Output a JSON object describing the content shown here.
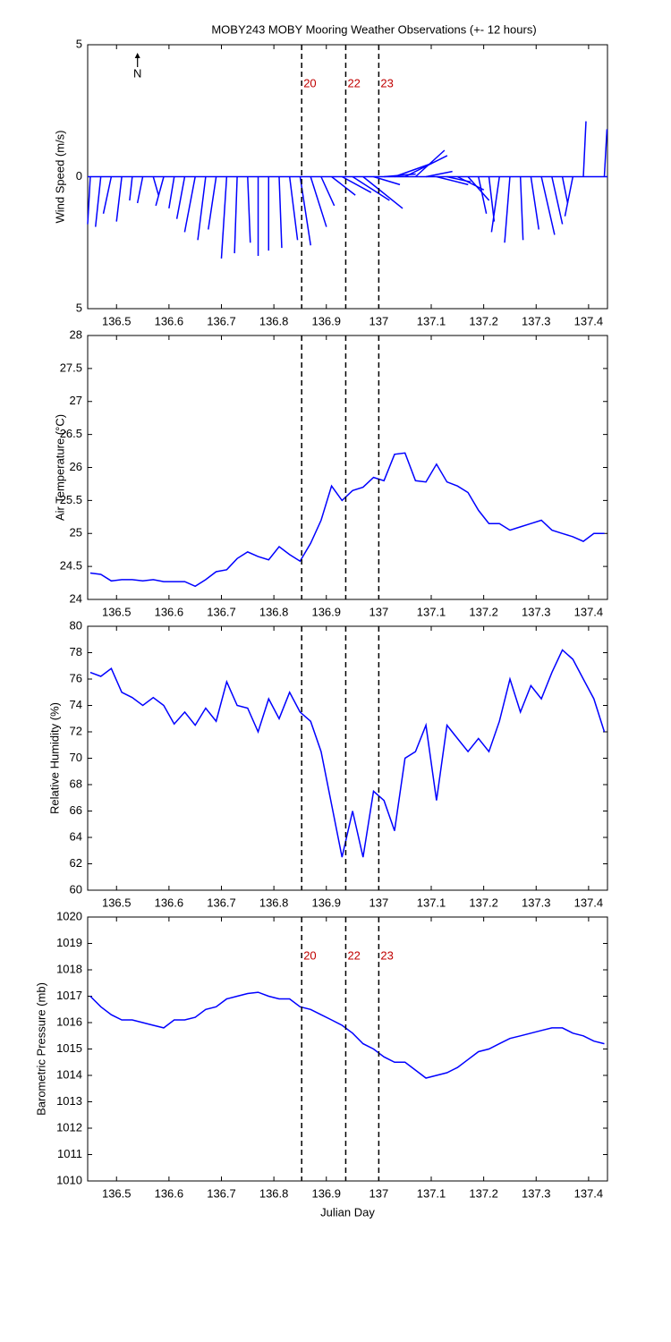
{
  "chart_data": [
    {
      "type": "quiver",
      "title": "MOBY243 MOBY Mooring Weather Observations (+- 12 hours)",
      "y_label": "Wind Speed (m/s)",
      "annotation": "N",
      "annotation_x": 136.54,
      "color": "#0000ff",
      "x": [
        136.45,
        136.47,
        136.49,
        136.51,
        136.53,
        136.55,
        136.57,
        136.59,
        136.61,
        136.63,
        136.65,
        136.67,
        136.69,
        136.71,
        136.73,
        136.75,
        136.77,
        136.79,
        136.81,
        136.83,
        136.85,
        136.87,
        136.89,
        136.91,
        136.93,
        136.95,
        136.97,
        136.99,
        137.01,
        137.03,
        137.05,
        137.07,
        137.09,
        137.11,
        137.13,
        137.15,
        137.17,
        137.19,
        137.21,
        137.23,
        137.25,
        137.27,
        137.29,
        137.31,
        137.33,
        137.35,
        137.37,
        137.39,
        137.41,
        137.43
      ],
      "u": [
        -0.1,
        -0.2,
        -0.3,
        -0.2,
        -0.1,
        -0.2,
        0.2,
        -0.3,
        -0.2,
        -0.3,
        -0.4,
        -0.3,
        -0.3,
        -0.2,
        -0.1,
        0.1,
        0.0,
        0.0,
        0.1,
        0.3,
        0.4,
        0.6,
        0.5,
        0.9,
        1.1,
        1.4,
        1.5,
        1.0,
        1.2,
        1.4,
        1.6,
        1.1,
        1.0,
        1.2,
        0.9,
        1.0,
        0.8,
        0.3,
        0.2,
        -0.3,
        -0.2,
        0.1,
        0.3,
        0.5,
        0.4,
        0.2,
        -0.3,
        0.1,
        0.0,
        0.1
      ],
      "v": [
        -1.8,
        -1.9,
        -1.4,
        -1.7,
        -0.9,
        -1.0,
        -0.7,
        -1.1,
        -1.2,
        -1.6,
        -2.1,
        -2.4,
        -2.0,
        -3.1,
        -2.9,
        -2.5,
        -3.0,
        -2.8,
        -2.7,
        -2.4,
        -2.6,
        -1.9,
        -1.1,
        -0.7,
        -0.6,
        -0.9,
        -1.2,
        -0.3,
        0.1,
        0.5,
        0.8,
        1.0,
        0.2,
        -0.3,
        -0.2,
        -0.5,
        -0.9,
        -1.4,
        -1.7,
        -2.1,
        -2.5,
        -2.4,
        -2.0,
        -2.2,
        -1.8,
        -1.0,
        -1.5,
        2.1,
        0.0,
        1.8
      ],
      "xlim": [
        136.445,
        137.436
      ],
      "xticks": [
        136.5,
        136.6,
        136.7,
        136.8,
        136.9,
        137,
        137.1,
        137.2,
        137.3,
        137.4
      ],
      "ylim": [
        -5,
        5
      ],
      "yticks": [
        {
          "value": -5,
          "label": "5"
        },
        0,
        5
      ],
      "vlines": [
        136.853,
        136.937,
        137.0
      ],
      "vline_labels": [
        "20",
        "22",
        "23"
      ]
    },
    {
      "type": "line",
      "y_label": "Air Temperature (°C)",
      "color": "#0000ff",
      "x": [
        136.45,
        136.47,
        136.49,
        136.51,
        136.53,
        136.55,
        136.57,
        136.59,
        136.61,
        136.63,
        136.65,
        136.67,
        136.69,
        136.71,
        136.73,
        136.75,
        136.77,
        136.79,
        136.81,
        136.83,
        136.85,
        136.87,
        136.89,
        136.91,
        136.93,
        136.95,
        136.97,
        136.99,
        137.01,
        137.03,
        137.05,
        137.07,
        137.09,
        137.11,
        137.13,
        137.15,
        137.17,
        137.19,
        137.21,
        137.23,
        137.25,
        137.27,
        137.29,
        137.31,
        137.33,
        137.35,
        137.37,
        137.39,
        137.41,
        137.43
      ],
      "values": [
        24.4,
        24.38,
        24.28,
        24.3,
        24.3,
        24.28,
        24.3,
        24.27,
        24.27,
        24.27,
        24.2,
        24.3,
        24.42,
        24.45,
        24.62,
        24.72,
        24.65,
        24.6,
        24.8,
        24.68,
        24.58,
        24.85,
        25.2,
        25.72,
        25.5,
        25.65,
        25.7,
        25.85,
        25.8,
        26.2,
        26.22,
        25.8,
        25.78,
        26.05,
        25.78,
        25.72,
        25.62,
        25.35,
        25.15,
        25.15,
        25.05,
        25.1,
        25.15,
        25.2,
        25.05,
        25.0,
        24.95,
        24.88,
        25.0,
        25.0
      ],
      "xlim": [
        136.445,
        137.436
      ],
      "xticks": [
        136.5,
        136.6,
        136.7,
        136.8,
        136.9,
        137,
        137.1,
        137.2,
        137.3,
        137.4
      ],
      "ylim": [
        24,
        28
      ],
      "yticks": [
        24,
        24.5,
        25,
        25.5,
        26,
        26.5,
        27,
        27.5,
        28
      ],
      "vlines": [
        136.853,
        136.937,
        137.0
      ]
    },
    {
      "type": "line",
      "y_label": "Relative Humidity (%)",
      "color": "#0000ff",
      "x": [
        136.45,
        136.47,
        136.49,
        136.51,
        136.53,
        136.55,
        136.57,
        136.59,
        136.61,
        136.63,
        136.65,
        136.67,
        136.69,
        136.71,
        136.73,
        136.75,
        136.77,
        136.79,
        136.81,
        136.83,
        136.85,
        136.87,
        136.89,
        136.91,
        136.93,
        136.95,
        136.97,
        136.99,
        137.01,
        137.03,
        137.05,
        137.07,
        137.09,
        137.11,
        137.13,
        137.15,
        137.17,
        137.19,
        137.21,
        137.23,
        137.25,
        137.27,
        137.29,
        137.31,
        137.33,
        137.35,
        137.37,
        137.39,
        137.41,
        137.43
      ],
      "values": [
        76.5,
        76.2,
        76.8,
        75.0,
        74.6,
        74.0,
        74.6,
        74.0,
        72.6,
        73.5,
        72.5,
        73.8,
        72.8,
        75.8,
        74.0,
        73.8,
        72.0,
        74.5,
        73.0,
        75.0,
        73.5,
        72.8,
        70.5,
        66.5,
        62.5,
        66.0,
        62.5,
        67.5,
        66.8,
        64.5,
        70.0,
        70.5,
        72.5,
        66.8,
        72.5,
        71.5,
        70.5,
        71.5,
        70.5,
        72.8,
        76.0,
        73.5,
        75.5,
        74.5,
        76.5,
        78.2,
        77.5,
        76.0,
        74.5,
        72.0
      ],
      "xlim": [
        136.445,
        137.436
      ],
      "xticks": [
        136.5,
        136.6,
        136.7,
        136.8,
        136.9,
        137,
        137.1,
        137.2,
        137.3,
        137.4
      ],
      "ylim": [
        60,
        80
      ],
      "yticks": [
        60,
        62,
        64,
        66,
        68,
        70,
        72,
        74,
        76,
        78,
        80
      ],
      "vlines": [
        136.853,
        136.937,
        137.0
      ]
    },
    {
      "type": "line",
      "y_label": "Barometric Pressure (mb)",
      "x_label": "Julian Day",
      "color": "#0000ff",
      "x": [
        136.45,
        136.47,
        136.49,
        136.51,
        136.53,
        136.55,
        136.57,
        136.59,
        136.61,
        136.63,
        136.65,
        136.67,
        136.69,
        136.71,
        136.73,
        136.75,
        136.77,
        136.79,
        136.81,
        136.83,
        136.85,
        136.87,
        136.89,
        136.91,
        136.93,
        136.95,
        136.97,
        136.99,
        137.01,
        137.03,
        137.05,
        137.07,
        137.09,
        137.11,
        137.13,
        137.15,
        137.17,
        137.19,
        137.21,
        137.23,
        137.25,
        137.27,
        137.29,
        137.31,
        137.33,
        137.35,
        137.37,
        137.39,
        137.41,
        137.43
      ],
      "values": [
        1017.0,
        1016.6,
        1016.3,
        1016.1,
        1016.1,
        1016.0,
        1015.9,
        1015.8,
        1016.1,
        1016.1,
        1016.2,
        1016.5,
        1016.6,
        1016.9,
        1017.0,
        1017.1,
        1017.15,
        1017.0,
        1016.9,
        1016.9,
        1016.6,
        1016.5,
        1016.3,
        1016.1,
        1015.9,
        1015.6,
        1015.2,
        1015.0,
        1014.7,
        1014.5,
        1014.5,
        1014.2,
        1013.9,
        1014.0,
        1014.1,
        1014.3,
        1014.6,
        1014.9,
        1015.0,
        1015.2,
        1015.4,
        1015.5,
        1015.6,
        1015.7,
        1015.8,
        1015.8,
        1015.6,
        1015.5,
        1015.3,
        1015.2
      ],
      "xlim": [
        136.445,
        137.436
      ],
      "xticks": [
        136.5,
        136.6,
        136.7,
        136.8,
        136.9,
        137,
        137.1,
        137.2,
        137.3,
        137.4
      ],
      "ylim": [
        1010,
        1020
      ],
      "yticks": [
        1010,
        1011,
        1012,
        1013,
        1014,
        1015,
        1016,
        1017,
        1018,
        1019,
        1020
      ],
      "vlines": [
        136.853,
        136.937,
        137.0
      ],
      "vline_labels": [
        "20",
        "22",
        "23"
      ]
    }
  ]
}
